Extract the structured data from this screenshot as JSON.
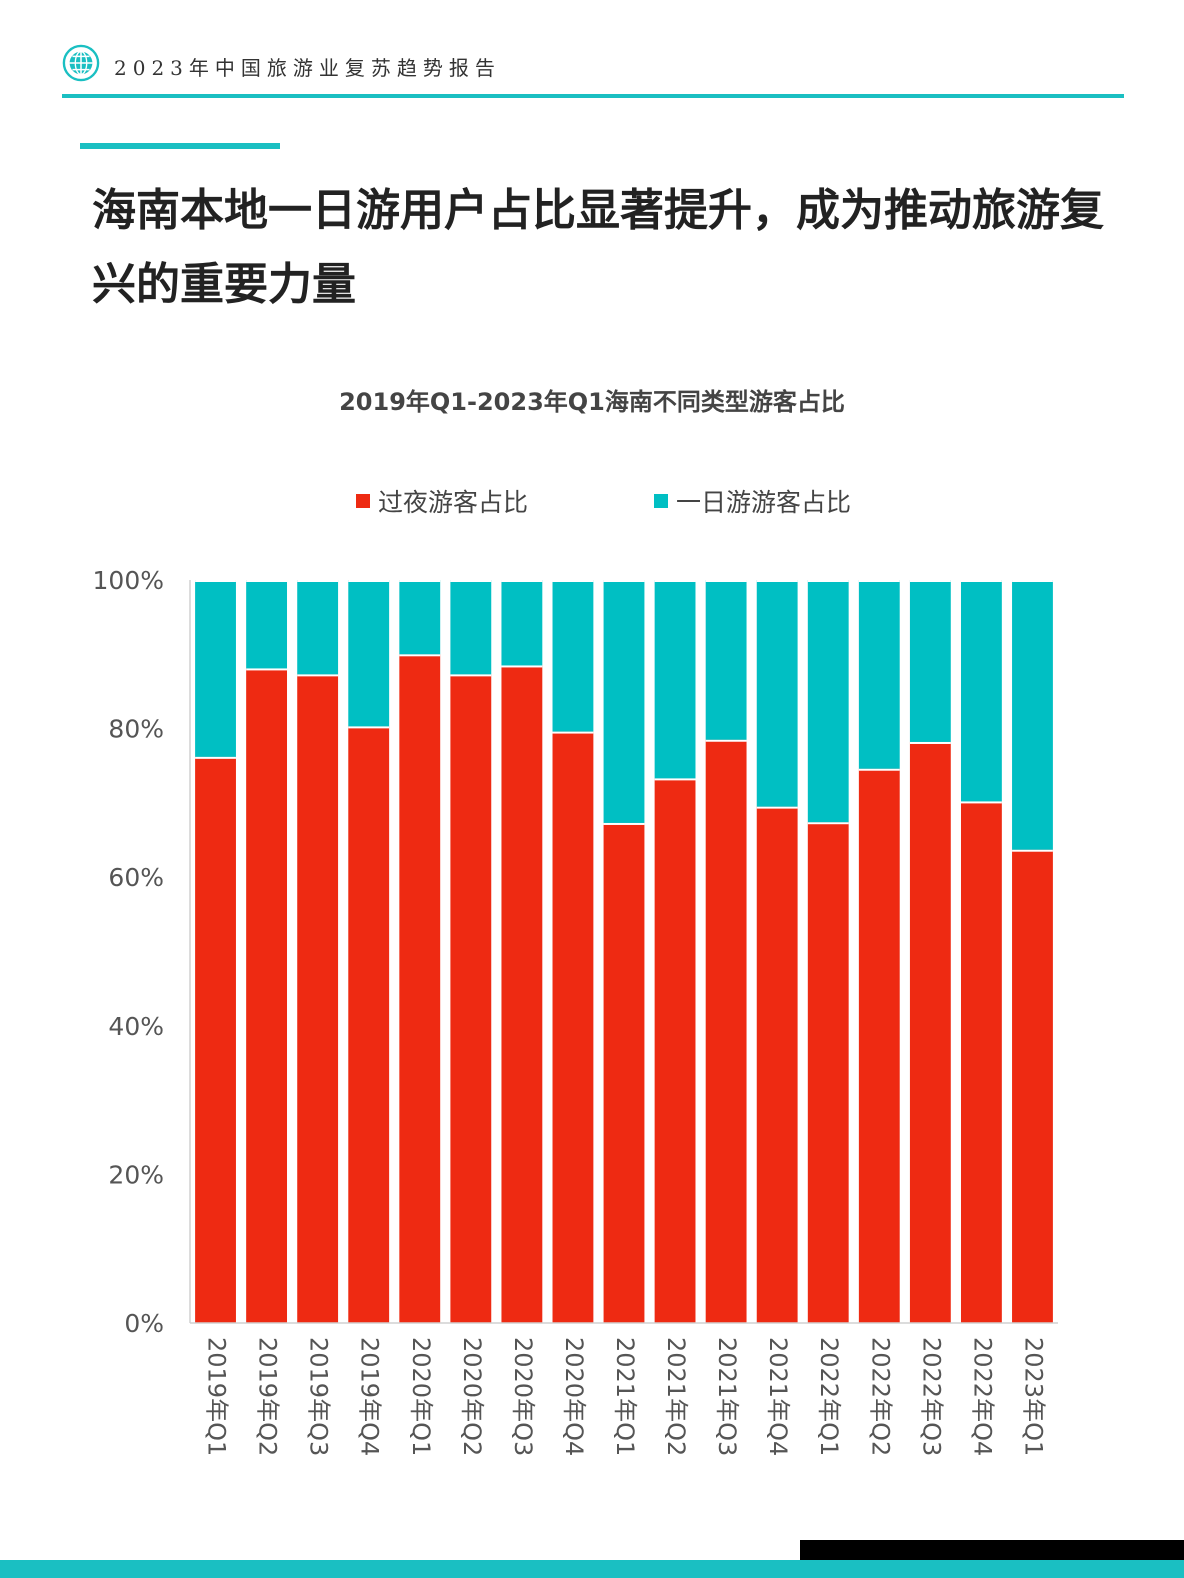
{
  "header": {
    "report_title": "2023年中国旅游业复苏趋势报告",
    "logo_icon": "globe-icon"
  },
  "headline": "海南本地一日游用户占比显著提升，成为推动旅游复兴的重要力量",
  "colors": {
    "accent": "#1ABFC2",
    "overnight": "#EE2A12",
    "day_trip": "#00BFC3"
  },
  "chart_data": {
    "type": "bar",
    "stacked": true,
    "title": "2019年Q1-2023年Q1海南不同类型游客占比",
    "categories": [
      "2019年Q1",
      "2019年Q2",
      "2019年Q3",
      "2019年Q4",
      "2020年Q1",
      "2020年Q2",
      "2020年Q3",
      "2020年Q4",
      "2021年Q1",
      "2021年Q2",
      "2021年Q3",
      "2021年Q4",
      "2022年Q1",
      "2022年Q2",
      "2022年Q3",
      "2022年Q4",
      "2023年Q1"
    ],
    "series": [
      {
        "name": "过夜游客占比",
        "values": [
          76.2,
          88.1,
          87.3,
          80.3,
          90.0,
          87.3,
          88.5,
          79.6,
          67.3,
          73.3,
          78.5,
          69.5,
          67.4,
          74.6,
          78.2,
          70.2,
          63.7
        ]
      },
      {
        "name": "一日游游客占比",
        "values": [
          23.8,
          11.9,
          12.7,
          19.7,
          10.0,
          12.7,
          11.5,
          20.4,
          32.7,
          26.7,
          21.5,
          30.5,
          32.6,
          25.4,
          21.8,
          29.8,
          36.3
        ]
      }
    ],
    "ylim": [
      0,
      100
    ],
    "yticks": [
      "0%",
      "20%",
      "40%",
      "60%",
      "80%",
      "100%"
    ],
    "legend_position": "top",
    "grid": false
  }
}
